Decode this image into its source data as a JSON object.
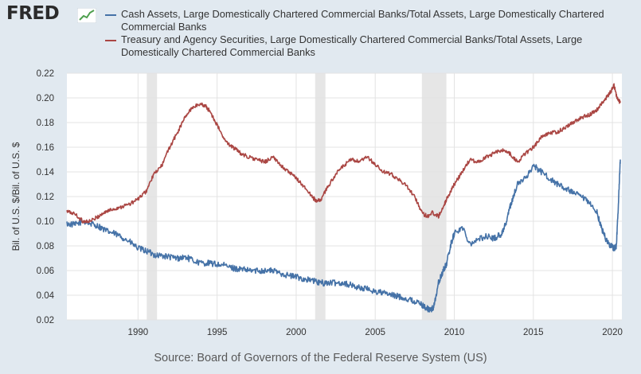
{
  "header": {
    "logo_text": "FRED",
    "logo_icon": "chart-line-icon"
  },
  "legend": [
    {
      "label": "Cash Assets, Large Domestically Chartered Commercial Banks/Total Assets, Large Domestically Chartered Commercial Banks",
      "color": "#4572a7"
    },
    {
      "label": "Treasury and Agency Securities, Large Domestically Chartered Commercial Banks/Total Assets, Large Domestically Chartered Commercial Banks",
      "color": "#aa4643"
    }
  ],
  "source": "Source: Board of Governors of the Federal Reserve System (US)",
  "chart_data": {
    "type": "line",
    "ylabel": "Bil. of U.S. $/Bil. of U.S. $",
    "xlabel": "",
    "xlim": [
      1985.5,
      2020.6
    ],
    "ylim": [
      0.02,
      0.22
    ],
    "x_ticks": [
      1990,
      1995,
      2000,
      2005,
      2010,
      2015,
      2020
    ],
    "y_ticks": [
      "0.02",
      "0.04",
      "0.06",
      "0.08",
      "0.10",
      "0.12",
      "0.14",
      "0.16",
      "0.18",
      "0.20",
      "0.22"
    ],
    "recessions": [
      [
        1990.55,
        1991.2
      ],
      [
        2001.2,
        2001.85
      ],
      [
        2007.95,
        2009.5
      ]
    ],
    "series": [
      {
        "name": "Cash Assets / Total Assets",
        "color": "#4572a7",
        "x": [
          1985.5,
          1986.0,
          1986.5,
          1987.0,
          1987.5,
          1988.0,
          1988.5,
          1989.0,
          1989.5,
          1990.0,
          1990.5,
          1991.0,
          1991.5,
          1992.0,
          1992.5,
          1993.0,
          1993.5,
          1994.0,
          1994.5,
          1995.0,
          1995.5,
          1996.0,
          1996.5,
          1997.0,
          1997.5,
          1998.0,
          1998.5,
          1999.0,
          1999.5,
          2000.0,
          2000.5,
          2001.0,
          2001.5,
          2002.0,
          2002.5,
          2003.0,
          2003.5,
          2004.0,
          2004.5,
          2005.0,
          2005.5,
          2006.0,
          2006.5,
          2007.0,
          2007.5,
          2008.0,
          2008.3,
          2008.5,
          2008.7,
          2009.0,
          2009.3,
          2009.5,
          2009.8,
          2010.0,
          2010.5,
          2011.0,
          2011.5,
          2012.0,
          2012.5,
          2013.0,
          2013.3,
          2013.6,
          2014.0,
          2014.5,
          2015.0,
          2015.5,
          2016.0,
          2016.5,
          2017.0,
          2017.5,
          2018.0,
          2018.5,
          2019.0,
          2019.3,
          2019.6,
          2019.9,
          2020.1,
          2020.25,
          2020.4,
          2020.5
        ],
        "y": [
          0.098,
          0.097,
          0.1,
          0.098,
          0.096,
          0.092,
          0.09,
          0.087,
          0.083,
          0.078,
          0.076,
          0.073,
          0.072,
          0.071,
          0.07,
          0.071,
          0.068,
          0.066,
          0.066,
          0.065,
          0.064,
          0.062,
          0.061,
          0.06,
          0.06,
          0.06,
          0.06,
          0.058,
          0.056,
          0.055,
          0.053,
          0.052,
          0.05,
          0.05,
          0.05,
          0.05,
          0.048,
          0.046,
          0.045,
          0.043,
          0.042,
          0.04,
          0.039,
          0.037,
          0.035,
          0.032,
          0.029,
          0.028,
          0.03,
          0.05,
          0.06,
          0.065,
          0.082,
          0.09,
          0.095,
          0.082,
          0.085,
          0.088,
          0.086,
          0.09,
          0.1,
          0.115,
          0.13,
          0.135,
          0.145,
          0.14,
          0.135,
          0.13,
          0.127,
          0.123,
          0.12,
          0.115,
          0.108,
          0.095,
          0.085,
          0.08,
          0.078,
          0.08,
          0.12,
          0.15
        ]
      },
      {
        "name": "Treasury and Agency Securities / Total Assets",
        "color": "#aa4643",
        "x": [
          1985.5,
          1986.0,
          1986.5,
          1987.0,
          1987.5,
          1988.0,
          1988.5,
          1989.0,
          1989.5,
          1990.0,
          1990.5,
          1991.0,
          1991.5,
          1992.0,
          1992.5,
          1993.0,
          1993.5,
          1994.0,
          1994.3,
          1994.6,
          1995.0,
          1995.5,
          1996.0,
          1996.5,
          1997.0,
          1997.5,
          1998.0,
          1998.5,
          1999.0,
          1999.5,
          2000.0,
          2000.5,
          2001.0,
          2001.3,
          2001.6,
          2002.0,
          2002.5,
          2003.0,
          2003.5,
          2004.0,
          2004.5,
          2005.0,
          2005.5,
          2006.0,
          2006.5,
          2007.0,
          2007.5,
          2008.0,
          2008.3,
          2008.6,
          2009.0,
          2009.3,
          2009.6,
          2010.0,
          2010.5,
          2011.0,
          2011.5,
          2012.0,
          2012.5,
          2013.0,
          2013.5,
          2014.0,
          2014.5,
          2015.0,
          2015.5,
          2016.0,
          2016.5,
          2017.0,
          2017.5,
          2018.0,
          2018.5,
          2019.0,
          2019.3,
          2019.6,
          2019.9,
          2020.1,
          2020.3,
          2020.5
        ],
        "y": [
          0.108,
          0.106,
          0.1,
          0.1,
          0.104,
          0.108,
          0.11,
          0.112,
          0.114,
          0.118,
          0.124,
          0.138,
          0.145,
          0.16,
          0.172,
          0.185,
          0.193,
          0.195,
          0.193,
          0.188,
          0.178,
          0.165,
          0.16,
          0.155,
          0.152,
          0.15,
          0.148,
          0.152,
          0.146,
          0.14,
          0.135,
          0.128,
          0.12,
          0.116,
          0.118,
          0.128,
          0.138,
          0.145,
          0.15,
          0.148,
          0.152,
          0.146,
          0.14,
          0.138,
          0.134,
          0.128,
          0.12,
          0.106,
          0.104,
          0.107,
          0.104,
          0.112,
          0.12,
          0.13,
          0.14,
          0.15,
          0.148,
          0.152,
          0.155,
          0.158,
          0.155,
          0.148,
          0.155,
          0.16,
          0.168,
          0.172,
          0.172,
          0.176,
          0.18,
          0.184,
          0.186,
          0.19,
          0.195,
          0.2,
          0.205,
          0.21,
          0.2,
          0.196
        ]
      }
    ]
  }
}
